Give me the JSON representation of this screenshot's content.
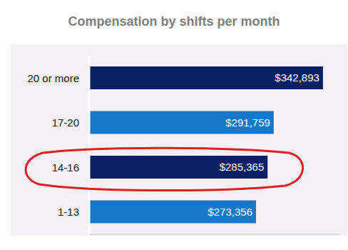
{
  "chart_data": {
    "type": "bar",
    "title": "Compensation by shifts per month",
    "orientation": "horizontal",
    "categories": [
      "20 or more",
      "17-20",
      "14-16",
      "1-13"
    ],
    "values": [
      342893,
      291759,
      285365,
      273356
    ],
    "value_labels": [
      "$342,893",
      "$291,759",
      "$285,365",
      "$273,356"
    ],
    "colors": [
      "#0b1f63",
      "#1677c9",
      "#0b1f63",
      "#1677c9"
    ],
    "xlim": [
      100000,
      360000
    ],
    "xticks": [],
    "grid": false,
    "data_labels": true,
    "tick_labels": "y"
  }
}
